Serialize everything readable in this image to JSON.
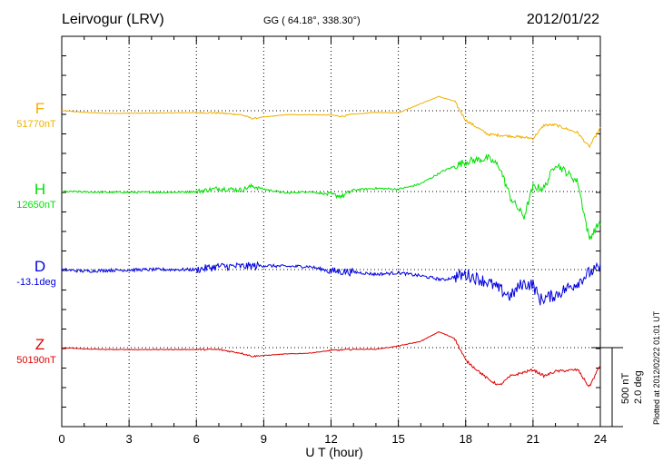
{
  "chart_data": {
    "type": "line",
    "title": "Leirvogur (LRV)",
    "coordinates": "GG ( 64.18°, 338.30°)",
    "date": "2012/01/22",
    "xlabel": "U T (hour)",
    "xlim": [
      0,
      24
    ],
    "xticks": [
      "0",
      "3",
      "6",
      "9",
      "12",
      "15",
      "18",
      "21",
      "24"
    ],
    "grid": true,
    "scale_label": "500 nT",
    "scale_label_deg": "2.0 deg",
    "plotted_note": "Plotted at 2012/02/22 01:01 UT",
    "series": [
      {
        "name": "F",
        "baseline": "51770nT",
        "color": "#f0b000",
        "offset_nT": 0,
        "noise": 2,
        "points": [
          [
            0,
            0
          ],
          [
            1,
            -10
          ],
          [
            2,
            -16
          ],
          [
            3,
            -16
          ],
          [
            6,
            -12
          ],
          [
            7,
            -14
          ],
          [
            8,
            -25
          ],
          [
            8.5,
            -50
          ],
          [
            9,
            -40
          ],
          [
            10,
            -25
          ],
          [
            11,
            -25
          ],
          [
            12,
            -28
          ],
          [
            12.5,
            -35
          ],
          [
            13,
            -22
          ],
          [
            14,
            -10
          ],
          [
            15,
            -13
          ],
          [
            16,
            45
          ],
          [
            16.8,
            90
          ],
          [
            17.5,
            60
          ],
          [
            18,
            -60
          ],
          [
            19,
            -150
          ],
          [
            20,
            -160
          ],
          [
            21,
            -175
          ],
          [
            21.5,
            -90
          ],
          [
            22,
            -90
          ],
          [
            23,
            -140
          ],
          [
            23.5,
            -230
          ],
          [
            24,
            -110
          ]
        ]
      },
      {
        "name": "H",
        "baseline": "12650nT",
        "color": "#00e000",
        "offset_nT": 0,
        "noise": 6,
        "points": [
          [
            0,
            0
          ],
          [
            2,
            -5
          ],
          [
            5,
            -5
          ],
          [
            6,
            0
          ],
          [
            7,
            20
          ],
          [
            8,
            10
          ],
          [
            8.5,
            35
          ],
          [
            9,
            15
          ],
          [
            10,
            -10
          ],
          [
            11,
            0
          ],
          [
            12,
            -20
          ],
          [
            12.5,
            -30
          ],
          [
            13,
            10
          ],
          [
            14,
            20
          ],
          [
            15,
            15
          ],
          [
            15.5,
            30
          ],
          [
            16,
            50
          ],
          [
            17,
            130
          ],
          [
            18,
            190
          ],
          [
            19,
            210
          ],
          [
            19.5,
            160
          ],
          [
            20,
            -40
          ],
          [
            20.6,
            -160
          ],
          [
            21,
            30
          ],
          [
            21.5,
            20
          ],
          [
            22,
            180
          ],
          [
            23,
            60
          ],
          [
            23.5,
            -300
          ],
          [
            24,
            -190
          ]
        ]
      },
      {
        "name": "D",
        "baseline": "-13.1deg",
        "color": "#0000e0",
        "offset_nT": 0,
        "noise": 10,
        "points": [
          [
            0,
            0
          ],
          [
            1,
            -10
          ],
          [
            2,
            -5
          ],
          [
            4,
            0
          ],
          [
            6,
            0
          ],
          [
            7,
            20
          ],
          [
            8,
            20
          ],
          [
            9,
            25
          ],
          [
            10,
            20
          ],
          [
            11,
            20
          ],
          [
            12,
            -10
          ],
          [
            13,
            -15
          ],
          [
            14,
            -30
          ],
          [
            15,
            -20
          ],
          [
            16,
            -40
          ],
          [
            17,
            -65
          ],
          [
            18,
            -30
          ],
          [
            19,
            -80
          ],
          [
            20,
            -170
          ],
          [
            20.5,
            -90
          ],
          [
            21,
            -95
          ],
          [
            21.3,
            -190
          ],
          [
            22,
            -160
          ],
          [
            23,
            -80
          ],
          [
            23.5,
            -20
          ],
          [
            24,
            10
          ]
        ]
      },
      {
        "name": "Z",
        "baseline": "50190nT",
        "color": "#e00000",
        "offset_nT": 0,
        "noise": 2,
        "points": [
          [
            0,
            0
          ],
          [
            1,
            -8
          ],
          [
            2,
            -12
          ],
          [
            3,
            -12
          ],
          [
            6,
            -12
          ],
          [
            7,
            -12
          ],
          [
            8,
            -35
          ],
          [
            8.5,
            -55
          ],
          [
            9,
            -50
          ],
          [
            10,
            -40
          ],
          [
            11,
            -35
          ],
          [
            12,
            -18
          ],
          [
            13,
            -10
          ],
          [
            14,
            -10
          ],
          [
            15,
            10
          ],
          [
            16,
            40
          ],
          [
            16.8,
            100
          ],
          [
            17.5,
            60
          ],
          [
            18,
            -80
          ],
          [
            19,
            -200
          ],
          [
            19.5,
            -240
          ],
          [
            20,
            -180
          ],
          [
            21,
            -140
          ],
          [
            21.5,
            -180
          ],
          [
            22,
            -150
          ],
          [
            23,
            -140
          ],
          [
            23.5,
            -250
          ],
          [
            24,
            -110
          ]
        ]
      }
    ]
  }
}
